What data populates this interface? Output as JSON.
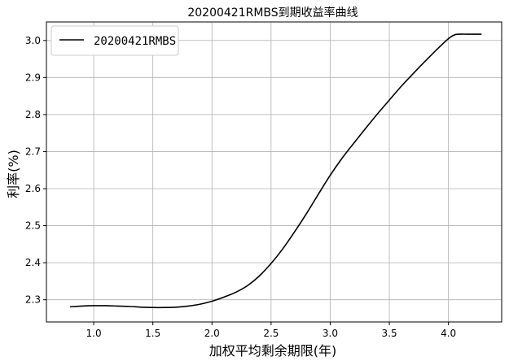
{
  "chart_data": {
    "type": "line",
    "title": "20200421RMBS到期收益率曲线",
    "xlabel": "加权平均剩余期限(年)",
    "ylabel": "利率(%)",
    "xlim": [
      0.6,
      4.45
    ],
    "ylim": [
      2.24,
      3.05
    ],
    "xticks": [
      1.0,
      1.5,
      2.0,
      2.5,
      3.0,
      3.5,
      4.0
    ],
    "xtick_labels": [
      "1.0",
      "1.5",
      "2.0",
      "2.5",
      "3.0",
      "3.5",
      "4.0"
    ],
    "yticks": [
      2.3,
      2.4,
      2.5,
      2.6,
      2.7,
      2.8,
      2.9,
      3.0
    ],
    "ytick_labels": [
      "2.3",
      "2.4",
      "2.5",
      "2.6",
      "2.7",
      "2.8",
      "2.9",
      "3.0"
    ],
    "grid": true,
    "legend_position": "top-left",
    "colors": {
      "line": "#000000",
      "grid": "#b0b0b0",
      "background": "#ffffff"
    },
    "series": [
      {
        "name": "20200421RMBS",
        "x": [
          0.8,
          0.9,
          1.0,
          1.1,
          1.2,
          1.3,
          1.4,
          1.5,
          1.6,
          1.7,
          1.8,
          1.9,
          2.0,
          2.1,
          2.2,
          2.3,
          2.4,
          2.5,
          2.6,
          2.7,
          2.8,
          2.9,
          3.0,
          3.1,
          3.2,
          3.3,
          3.4,
          3.5,
          3.6,
          3.7,
          3.8,
          3.9,
          4.0,
          4.05,
          4.1,
          4.15,
          4.2,
          4.28
        ],
        "y": [
          2.281,
          2.283,
          2.284,
          2.284,
          2.283,
          2.282,
          2.28,
          2.279,
          2.279,
          2.28,
          2.283,
          2.288,
          2.296,
          2.307,
          2.32,
          2.338,
          2.364,
          2.398,
          2.438,
          2.484,
          2.533,
          2.585,
          2.636,
          2.682,
          2.723,
          2.763,
          2.802,
          2.839,
          2.876,
          2.91,
          2.943,
          2.975,
          3.005,
          3.015,
          3.017,
          3.017,
          3.017,
          3.017
        ]
      }
    ]
  }
}
